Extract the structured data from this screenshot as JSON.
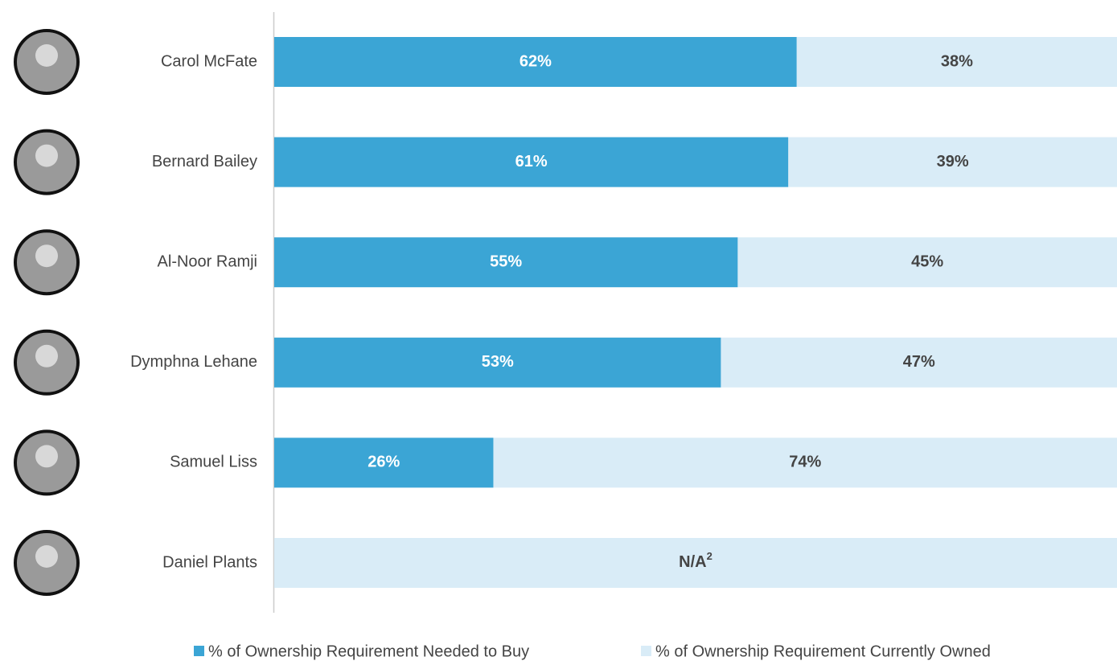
{
  "chart_data": {
    "type": "stacked-bar-horizontal",
    "categories": [
      "Carol McFate",
      "Bernard Bailey",
      "Al-Noor Ramji",
      "Dymphna Lehane",
      "Samuel Liss",
      "Daniel Plants"
    ],
    "xlim": [
      0,
      100
    ],
    "series": [
      {
        "name": "% of Ownership Requirement Needed to Buy",
        "color": "#3ba5d5",
        "label_color": "#ffffff",
        "values": [
          62,
          61,
          55,
          53,
          26,
          null
        ],
        "value_labels": [
          "62%",
          "61%",
          "55%",
          "53%",
          "26%",
          null
        ]
      },
      {
        "name": "% of Ownership Requirement Currently Owned",
        "color": "#d9ecf7",
        "label_color": "#444444",
        "values": [
          38,
          39,
          45,
          47,
          74,
          null
        ],
        "value_labels": [
          "38%",
          "39%",
          "45%",
          "47%",
          "74%",
          "N/A"
        ]
      }
    ],
    "na_footnote": "2"
  }
}
